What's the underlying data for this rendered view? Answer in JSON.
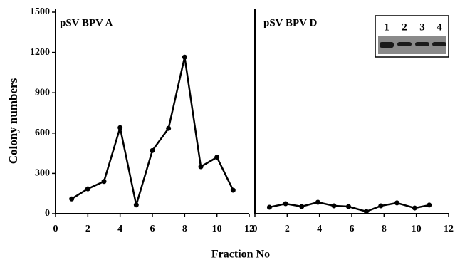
{
  "chart_data": [
    {
      "type": "line",
      "title": "pSV BPV A",
      "ylabel": "Colony numbers",
      "xlabel": "Fraction No",
      "x": [
        1,
        2,
        3,
        4,
        5,
        6,
        7,
        8,
        9,
        10,
        11
      ],
      "values": [
        110,
        185,
        240,
        640,
        65,
        470,
        635,
        1165,
        350,
        420,
        175
      ],
      "color": "#000000",
      "xlim": [
        0,
        12
      ],
      "xticks": [
        0,
        2,
        4,
        6,
        8,
        10,
        12
      ],
      "ylim": [
        0,
        1500
      ],
      "yticks": [
        0,
        300,
        600,
        900,
        1200,
        1500
      ]
    },
    {
      "type": "line",
      "title": "pSV BPV D",
      "x": [
        0.9,
        1.9,
        2.9,
        3.9,
        4.9,
        5.8,
        6.9,
        7.8,
        8.8,
        9.9,
        10.8
      ],
      "values": [
        48,
        74,
        53,
        85,
        58,
        53,
        16,
        58,
        80,
        42,
        64
      ],
      "color": "#000000",
      "xlim": [
        0,
        12
      ],
      "xticks": [
        0,
        2,
        4,
        6,
        8,
        10,
        12
      ],
      "ylim": [
        0,
        1500
      ],
      "inset_labels": [
        "1",
        "2",
        "3",
        "4"
      ]
    }
  ]
}
